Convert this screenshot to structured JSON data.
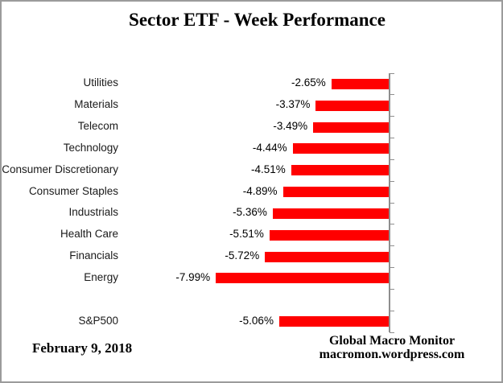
{
  "title": "Sector ETF - Week Performance",
  "footer": {
    "date": "February 9, 2018",
    "source_line1": "Global Macro Monitor",
    "source_line2": "macromon.wordpress.com"
  },
  "colors": {
    "bar": "#FF0000",
    "axis": "#8e8e8e",
    "label_text": "#1a1a1a",
    "border": "#9b9b9b"
  },
  "chart_data": {
    "type": "bar",
    "orientation": "horizontal",
    "title": "Sector ETF - Week Performance",
    "categories": [
      "Utilities",
      "Materials",
      "Telecom",
      "Technology",
      "Consumer Discretionary",
      "Consumer Staples",
      "Industrials",
      "Health Care",
      "Financials",
      "Energy",
      "",
      "S&P500"
    ],
    "values": [
      -2.65,
      -3.37,
      -3.49,
      -4.44,
      -4.51,
      -4.89,
      -5.36,
      -5.51,
      -5.72,
      -7.99,
      null,
      -5.06
    ],
    "value_labels": [
      "-2.65%",
      "-3.37%",
      "-3.49%",
      "-4.44%",
      "-4.51%",
      "-4.89%",
      "-5.36%",
      "-5.51%",
      "-5.72%",
      "-7.99%",
      "",
      "-5.06%"
    ],
    "xlim": [
      -9,
      0
    ],
    "zero_axis_side": "right",
    "grid": false,
    "legend": false,
    "bar_color": "#FF0000",
    "data_label_position": "outside-end-left"
  }
}
